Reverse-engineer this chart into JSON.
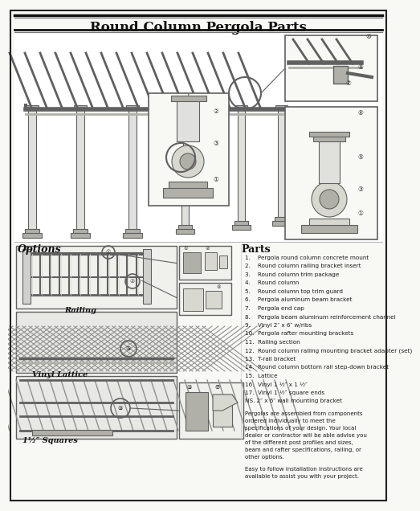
{
  "title": "Round Column Pergola Parts",
  "background_color": "#f8f8f4",
  "parts_title": "Parts",
  "options_title": "Options",
  "parts_list": [
    "1.    Pergola round column concrete mount",
    "2.    Round column railing bracket insert",
    "3.    Round column trim package",
    "4.    Round column",
    "5.    Round column top trim guard",
    "6.    Pergola aluminum beam bracket",
    "7.    Pergola end cap",
    "8.    Pergola beam aluminum reinforcement channel",
    "9.    Vinyl 2″ x 6″ w/ribs",
    "10.  Pergola rafter mounting brackets",
    "11.  Railing section",
    "12.  Round column railing mounting bracket adapter (set)",
    "13.  T-rail bracket",
    "14.  Round column bottom rail step-down bracket",
    "15.  Lattice",
    "16.  Vinyl 1 ½″ x 1 ½″",
    "17.  Vinyl 1 ½″ square ends",
    "NS. 2″ x 6″ wall mounting bracket"
  ],
  "paragraph1": "Pergolas are assembled from components ordered individually to meet the specifications of your design. Your local dealer or contractor will be able advise you of the different post profiles and sizes, beam and rafter specifications, railing, or other options.",
  "paragraph2": "Easy to follow installation instructions are available to assist you with your project.",
  "railing_label": "Railing",
  "vinyl_lattice_label": "Vinyl Lattice",
  "squares_label": "1½″ Squares",
  "gray_light": "#d8d8d0",
  "gray_mid": "#b0b0a8",
  "gray_dark": "#606060",
  "gray_vdark": "#303030",
  "line_color": "#404040"
}
